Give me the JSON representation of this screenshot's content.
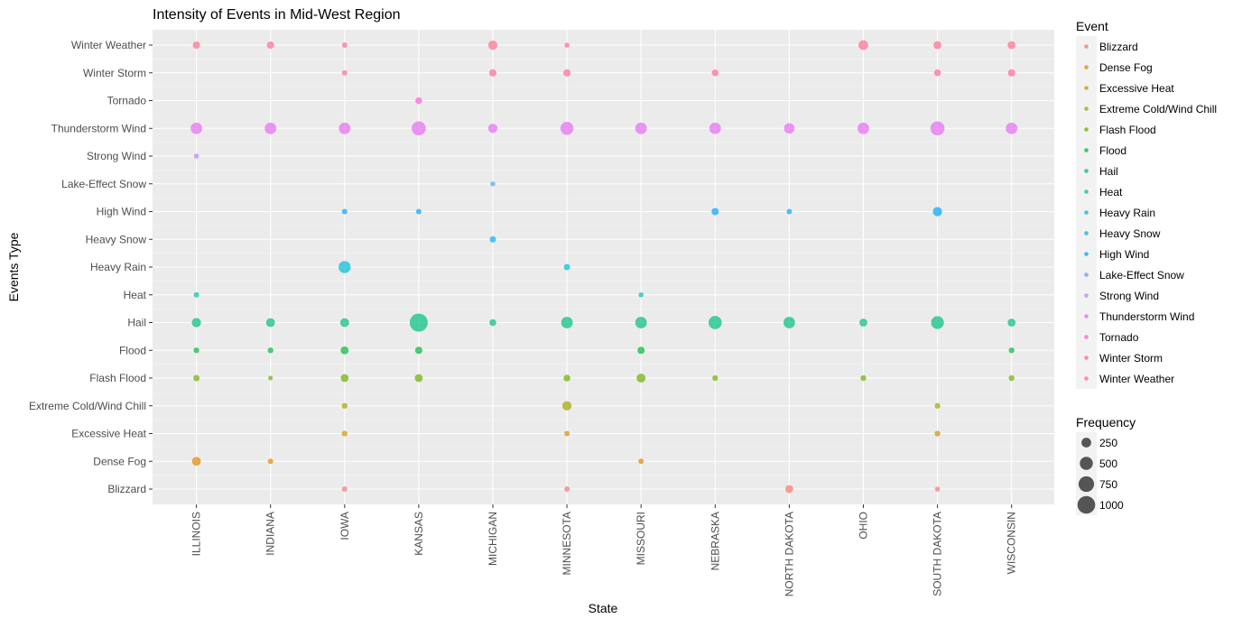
{
  "chart_data": {
    "type": "scatter",
    "title": "Intensity of Events in Mid-West Region",
    "xlabel": "State",
    "ylabel": "Events Type",
    "grid": true,
    "legend_position": "right",
    "x_categories": [
      "ILLINOIS",
      "INDIANA",
      "IOWA",
      "KANSAS",
      "MICHIGAN",
      "MINNESOTA",
      "MISSOURI",
      "NEBRASKA",
      "NORTH DAKOTA",
      "OHIO",
      "SOUTH DAKOTA",
      "WISCONSIN"
    ],
    "y_categories": [
      "Blizzard",
      "Dense Fog",
      "Excessive Heat",
      "Extreme Cold/Wind Chill",
      "Flash Flood",
      "Flood",
      "Hail",
      "Heat",
      "Heavy Rain",
      "Heavy Snow",
      "High Wind",
      "Lake-Effect Snow",
      "Strong Wind",
      "Thunderstorm Wind",
      "Tornado",
      "Winter Storm",
      "Winter Weather"
    ],
    "event_colors": {
      "Blizzard": "#F8766D",
      "Dense Fog": "#E58700",
      "Excessive Heat": "#C99800",
      "Extreme Cold/Wind Chill": "#A3A500",
      "Flash Flood": "#6BB100",
      "Flood": "#00BA38",
      "Hail": "#00BF7D",
      "Heat": "#00C0AF",
      "Heavy Rain": "#00BCD8",
      "Heavy Snow": "#00B0F6",
      "High Wind": "#00A5FF",
      "Lake-Effect Snow": "#619CFF",
      "Strong Wind": "#B983FF",
      "Thunderstorm Wind": "#E76BF3",
      "Tornado": "#FD61D1",
      "Winter Storm": "#FF67A4",
      "Winter Weather": "#FF6C90"
    },
    "size_legend": {
      "title": "Frequency",
      "values": [
        250,
        500,
        750,
        1000
      ],
      "labels": [
        "250",
        "500",
        "750",
        "1000"
      ]
    },
    "legend_title": "Event",
    "points": [
      {
        "state": "ILLINOIS",
        "event": "Winter Weather",
        "freq": 120
      },
      {
        "state": "INDIANA",
        "event": "Winter Weather",
        "freq": 120
      },
      {
        "state": "IOWA",
        "event": "Winter Weather",
        "freq": 50
      },
      {
        "state": "MICHIGAN",
        "event": "Winter Weather",
        "freq": 220
      },
      {
        "state": "MINNESOTA",
        "event": "Winter Weather",
        "freq": 40
      },
      {
        "state": "OHIO",
        "event": "Winter Weather",
        "freq": 250
      },
      {
        "state": "SOUTH DAKOTA",
        "event": "Winter Weather",
        "freq": 150
      },
      {
        "state": "WISCONSIN",
        "event": "Winter Weather",
        "freq": 150
      },
      {
        "state": "IOWA",
        "event": "Winter Storm",
        "freq": 50
      },
      {
        "state": "MICHIGAN",
        "event": "Winter Storm",
        "freq": 120
      },
      {
        "state": "MINNESOTA",
        "event": "Winter Storm",
        "freq": 120
      },
      {
        "state": "NEBRASKA",
        "event": "Winter Storm",
        "freq": 100
      },
      {
        "state": "SOUTH DAKOTA",
        "event": "Winter Storm",
        "freq": 100
      },
      {
        "state": "WISCONSIN",
        "event": "Winter Storm",
        "freq": 120
      },
      {
        "state": "KANSAS",
        "event": "Tornado",
        "freq": 100
      },
      {
        "state": "ILLINOIS",
        "event": "Thunderstorm Wind",
        "freq": 380
      },
      {
        "state": "INDIANA",
        "event": "Thunderstorm Wind",
        "freq": 380
      },
      {
        "state": "IOWA",
        "event": "Thunderstorm Wind",
        "freq": 380
      },
      {
        "state": "KANSAS",
        "event": "Thunderstorm Wind",
        "freq": 600
      },
      {
        "state": "MICHIGAN",
        "event": "Thunderstorm Wind",
        "freq": 220
      },
      {
        "state": "MINNESOTA",
        "event": "Thunderstorm Wind",
        "freq": 500
      },
      {
        "state": "MISSOURI",
        "event": "Thunderstorm Wind",
        "freq": 380
      },
      {
        "state": "NEBRASKA",
        "event": "Thunderstorm Wind",
        "freq": 380
      },
      {
        "state": "NORTH DAKOTA",
        "event": "Thunderstorm Wind",
        "freq": 300
      },
      {
        "state": "OHIO",
        "event": "Thunderstorm Wind",
        "freq": 380
      },
      {
        "state": "SOUTH DAKOTA",
        "event": "Thunderstorm Wind",
        "freq": 600
      },
      {
        "state": "WISCONSIN",
        "event": "Thunderstorm Wind",
        "freq": 380
      },
      {
        "state": "ILLINOIS",
        "event": "Strong Wind",
        "freq": 40
      },
      {
        "state": "MICHIGAN",
        "event": "Lake-Effect Snow",
        "freq": 40
      },
      {
        "state": "IOWA",
        "event": "High Wind",
        "freq": 50
      },
      {
        "state": "KANSAS",
        "event": "High Wind",
        "freq": 50
      },
      {
        "state": "NEBRASKA",
        "event": "High Wind",
        "freq": 120
      },
      {
        "state": "NORTH DAKOTA",
        "event": "High Wind",
        "freq": 50
      },
      {
        "state": "SOUTH DAKOTA",
        "event": "High Wind",
        "freq": 220
      },
      {
        "state": "MICHIGAN",
        "event": "Heavy Snow",
        "freq": 80
      },
      {
        "state": "IOWA",
        "event": "Heavy Rain",
        "freq": 420
      },
      {
        "state": "MINNESOTA",
        "event": "Heavy Rain",
        "freq": 80
      },
      {
        "state": "ILLINOIS",
        "event": "Heat",
        "freq": 50
      },
      {
        "state": "MISSOURI",
        "event": "Heat",
        "freq": 40
      },
      {
        "state": "ILLINOIS",
        "event": "Hail",
        "freq": 220
      },
      {
        "state": "INDIANA",
        "event": "Hail",
        "freq": 200
      },
      {
        "state": "IOWA",
        "event": "Hail",
        "freq": 200
      },
      {
        "state": "KANSAS",
        "event": "Hail",
        "freq": 1050
      },
      {
        "state": "MICHIGAN",
        "event": "Hail",
        "freq": 100
      },
      {
        "state": "MINNESOTA",
        "event": "Hail",
        "freq": 380
      },
      {
        "state": "MISSOURI",
        "event": "Hail",
        "freq": 380
      },
      {
        "state": "NEBRASKA",
        "event": "Hail",
        "freq": 520
      },
      {
        "state": "NORTH DAKOTA",
        "event": "Hail",
        "freq": 380
      },
      {
        "state": "OHIO",
        "event": "Hail",
        "freq": 150
      },
      {
        "state": "SOUTH DAKOTA",
        "event": "Hail",
        "freq": 480
      },
      {
        "state": "WISCONSIN",
        "event": "Hail",
        "freq": 150
      },
      {
        "state": "ILLINOIS",
        "event": "Flood",
        "freq": 60
      },
      {
        "state": "INDIANA",
        "event": "Flood",
        "freq": 60
      },
      {
        "state": "IOWA",
        "event": "Flood",
        "freq": 150
      },
      {
        "state": "KANSAS",
        "event": "Flood",
        "freq": 120
      },
      {
        "state": "MISSOURI",
        "event": "Flood",
        "freq": 120
      },
      {
        "state": "WISCONSIN",
        "event": "Flood",
        "freq": 60
      },
      {
        "state": "ILLINOIS",
        "event": "Flash Flood",
        "freq": 80
      },
      {
        "state": "INDIANA",
        "event": "Flash Flood",
        "freq": 30
      },
      {
        "state": "IOWA",
        "event": "Flash Flood",
        "freq": 150
      },
      {
        "state": "KANSAS",
        "event": "Flash Flood",
        "freq": 150
      },
      {
        "state": "MINNESOTA",
        "event": "Flash Flood",
        "freq": 100
      },
      {
        "state": "MISSOURI",
        "event": "Flash Flood",
        "freq": 200
      },
      {
        "state": "NEBRASKA",
        "event": "Flash Flood",
        "freq": 60
      },
      {
        "state": "OHIO",
        "event": "Flash Flood",
        "freq": 60
      },
      {
        "state": "WISCONSIN",
        "event": "Flash Flood",
        "freq": 60
      },
      {
        "state": "IOWA",
        "event": "Extreme Cold/Wind Chill",
        "freq": 60
      },
      {
        "state": "MINNESOTA",
        "event": "Extreme Cold/Wind Chill",
        "freq": 220
      },
      {
        "state": "SOUTH DAKOTA",
        "event": "Extreme Cold/Wind Chill",
        "freq": 60
      },
      {
        "state": "IOWA",
        "event": "Excessive Heat",
        "freq": 60
      },
      {
        "state": "MINNESOTA",
        "event": "Excessive Heat",
        "freq": 50
      },
      {
        "state": "SOUTH DAKOTA",
        "event": "Excessive Heat",
        "freq": 60
      },
      {
        "state": "ILLINOIS",
        "event": "Dense Fog",
        "freq": 200
      },
      {
        "state": "INDIANA",
        "event": "Dense Fog",
        "freq": 50
      },
      {
        "state": "MISSOURI",
        "event": "Dense Fog",
        "freq": 50
      },
      {
        "state": "IOWA",
        "event": "Blizzard",
        "freq": 50
      },
      {
        "state": "MINNESOTA",
        "event": "Blizzard",
        "freq": 50
      },
      {
        "state": "NORTH DAKOTA",
        "event": "Blizzard",
        "freq": 150
      },
      {
        "state": "SOUTH DAKOTA",
        "event": "Blizzard",
        "freq": 40
      }
    ]
  }
}
